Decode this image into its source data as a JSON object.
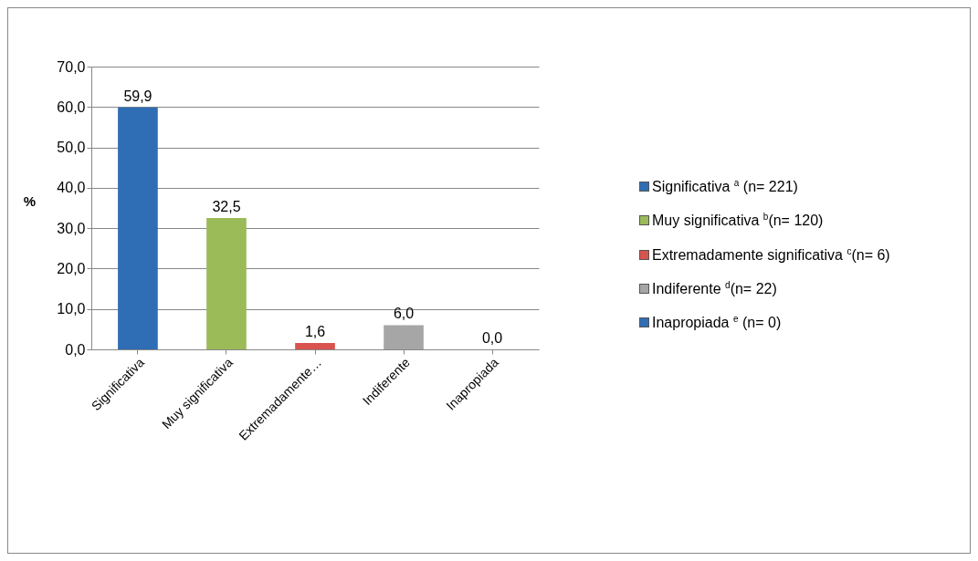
{
  "chart_data": {
    "type": "bar",
    "ylabel": "%",
    "categories": [
      "Significativa",
      "Muy significativa",
      "Extremadamente…",
      "Indiferente",
      "Inapropiada"
    ],
    "series": [
      {
        "name": "Significativa $^{a}$ (n= 221)",
        "color": "#2f6db5",
        "values": [
          59.9,
          null,
          null,
          null,
          null
        ],
        "value_labels": [
          "59,9",
          null,
          null,
          null,
          null
        ]
      },
      {
        "name": "Muy significativa $^{b}$(n= 120)",
        "color": "#9bbb59",
        "values": [
          null,
          32.5,
          null,
          null,
          null
        ],
        "value_labels": [
          null,
          "32,5",
          null,
          null,
          null
        ]
      },
      {
        "name": "Extremadamente significativa $^{c}$(n= 6)",
        "color": "#d9534f",
        "values": [
          null,
          null,
          1.6,
          null,
          null
        ],
        "value_labels": [
          null,
          null,
          "1,6",
          null,
          null
        ]
      },
      {
        "name": "Indiferente $^{d}$(n= 22)",
        "color": "#a6a6a6",
        "values": [
          null,
          null,
          null,
          6.0,
          null
        ],
        "value_labels": [
          null,
          null,
          null,
          "6,0",
          null
        ]
      },
      {
        "name": "Inapropiada $^{e}$ (n= 0)",
        "color": "#2f6db5",
        "values": [
          null,
          null,
          null,
          null,
          0.0
        ],
        "value_labels": [
          null,
          null,
          null,
          null,
          "0,0"
        ]
      }
    ],
    "ylim": [
      0,
      70
    ],
    "yticks": [
      {
        "value": 0,
        "label": "0,0"
      },
      {
        "value": 10,
        "label": "10,0"
      },
      {
        "value": 20,
        "label": "20,0"
      },
      {
        "value": 30,
        "label": "30,0"
      },
      {
        "value": 40,
        "label": "40,0"
      },
      {
        "value": 50,
        "label": "50,0"
      },
      {
        "value": 60,
        "label": "60,0"
      },
      {
        "value": 70,
        "label": "70,0"
      }
    ],
    "grid": "y",
    "legend": "right"
  }
}
